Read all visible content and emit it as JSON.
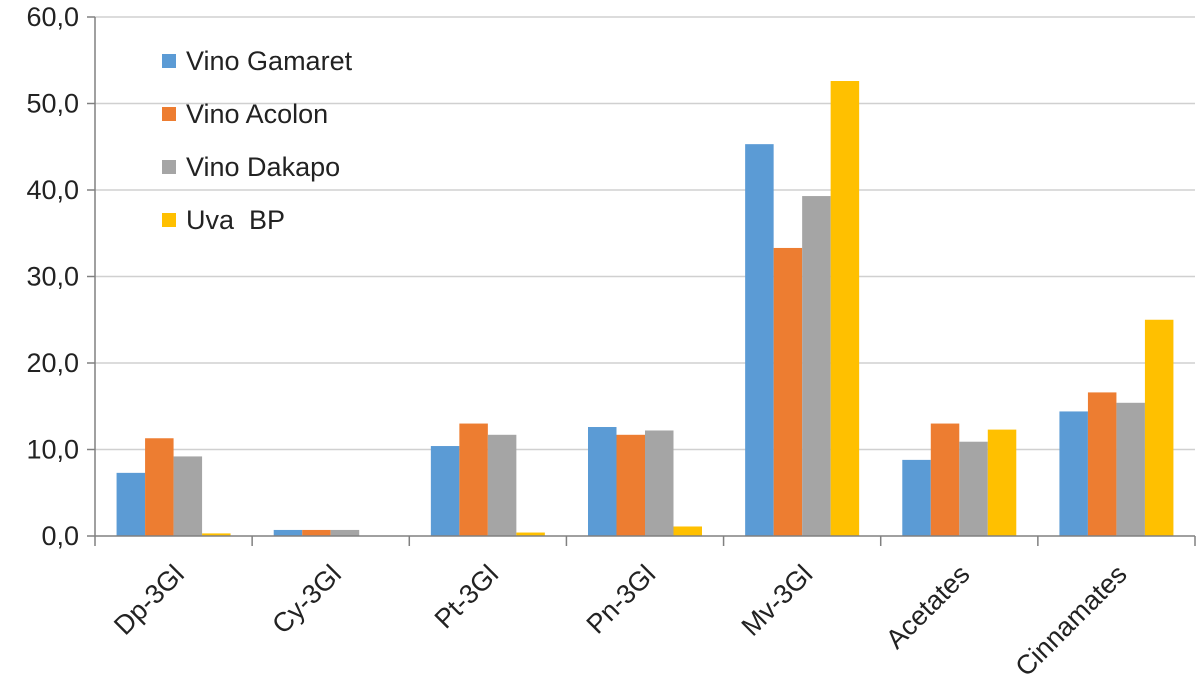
{
  "chart_data": {
    "type": "bar",
    "title": "",
    "xlabel": "",
    "ylabel": "",
    "categories": [
      "Dp-3Gl",
      "Cy-3Gl",
      "Pt-3Gl",
      "Pn-3Gl",
      "Mv-3Gl",
      "Acetates",
      "Cinnamates"
    ],
    "series": [
      {
        "name": "Vino Gamaret",
        "color": "#5B9BD5",
        "values": [
          7.3,
          0.7,
          10.4,
          12.6,
          45.3,
          8.8,
          14.4
        ]
      },
      {
        "name": "Vino Acolon",
        "color": "#ED7D31",
        "values": [
          11.3,
          0.7,
          13.0,
          11.7,
          33.3,
          13.0,
          16.6
        ]
      },
      {
        "name": "Vino Dakapo",
        "color": "#A5A5A5",
        "values": [
          9.2,
          0.7,
          11.7,
          12.2,
          39.3,
          10.9,
          15.4
        ]
      },
      {
        "name": "Uva  BP",
        "color": "#FFC000",
        "values": [
          0.3,
          0.0,
          0.4,
          1.1,
          52.6,
          12.3,
          25.0
        ]
      }
    ],
    "ylim": [
      0,
      60
    ],
    "yticks": [
      "0,0",
      "10,0",
      "20,0",
      "30,0",
      "40,0",
      "50,0",
      "60,0"
    ],
    "grid": true,
    "legend_position": "top-left"
  }
}
